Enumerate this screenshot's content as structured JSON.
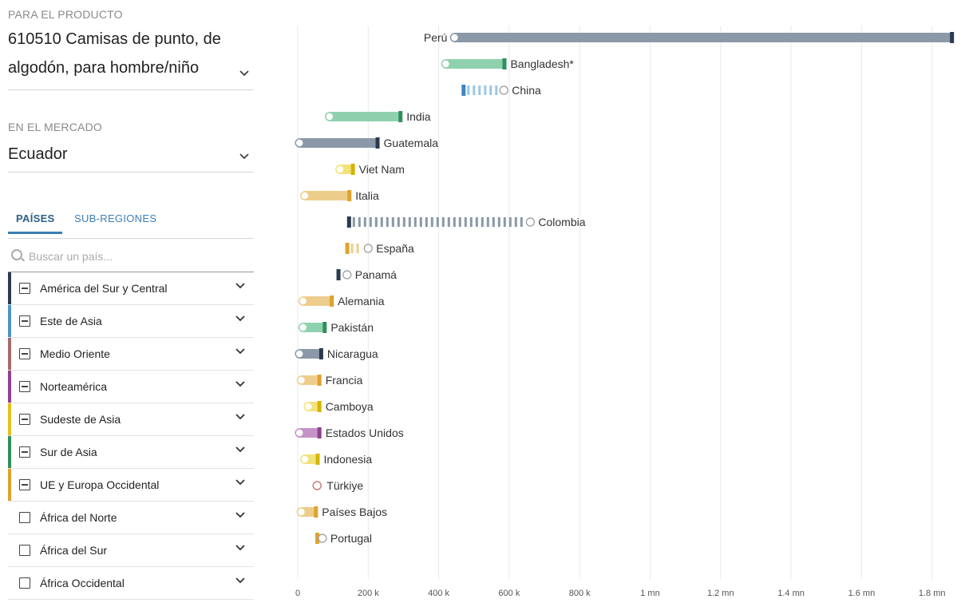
{
  "product": {
    "label": "PARA EL PRODUCTO",
    "line1": "610510 Camisas de punto, de",
    "line2": "algodón, para hombre/niño"
  },
  "market": {
    "label": "EN EL MERCADO",
    "value": "Ecuador"
  },
  "tabs": [
    {
      "label": "PAÍSES",
      "active": true
    },
    {
      "label": "SUB-REGIONES",
      "active": false
    }
  ],
  "search": {
    "placeholder": "Buscar un país..."
  },
  "regions": [
    {
      "label": "América del Sur y Central",
      "color": "#2b3a4f",
      "checked": true
    },
    {
      "label": "Este de Asia",
      "color": "#4f93c8",
      "checked": true
    },
    {
      "label": "Medio Oriente",
      "color": "#a56b6b",
      "checked": true
    },
    {
      "label": "Norteamérica",
      "color": "#8e3f91",
      "checked": true
    },
    {
      "label": "Sudeste de Asia",
      "color": "#e2c21b",
      "checked": true
    },
    {
      "label": "Sur de Asia",
      "color": "#2f8f5c",
      "checked": true
    },
    {
      "label": "UE y Europa Occidental",
      "color": "#e0a22e",
      "checked": true
    },
    {
      "label": "África del Norte",
      "color": "",
      "checked": false
    },
    {
      "label": "África del Sur",
      "color": "",
      "checked": false
    },
    {
      "label": "África Occidental",
      "color": "",
      "checked": false
    }
  ],
  "colors": {
    "south_central_america": "#8a98a8",
    "south_central_america_dark": "#2b3a4f",
    "east_asia": "#9cc7e6",
    "east_asia_dark": "#3f87c2",
    "south_asia": "#8fd1ae",
    "south_asia_dark": "#2f8f5c",
    "southeast_asia": "#f2e27a",
    "southeast_asia_dark": "#d6b400",
    "europe": "#edcd8c",
    "europe_dark": "#e0a22e",
    "north_america": "#c592c8",
    "north_america_dark": "#8e3f91",
    "middle_east": "#c97d7d"
  },
  "chart_data": {
    "type": "bar",
    "x_ticks": [
      "0",
      "200 k",
      "400 k",
      "600 k",
      "800 k",
      "1 mn",
      "1.2 mn",
      "1.4 mn",
      "1.6 mn",
      "1.8 mn"
    ],
    "x_tick_values": [
      0,
      200000,
      400000,
      600000,
      800000,
      1000000,
      1200000,
      1400000,
      1600000,
      1800000
    ],
    "xlim": [
      0,
      1880000
    ],
    "grid": true,
    "series": [
      {
        "country": "Perú",
        "from": 445000,
        "to": 1860000,
        "region": "south_central_america",
        "direction": "up"
      },
      {
        "country": "Bangladesh*",
        "from": 420000,
        "to": 590000,
        "region": "south_asia",
        "direction": "up"
      },
      {
        "country": "China",
        "from": 585000,
        "to": 465000,
        "region": "east_asia",
        "direction": "down"
      },
      {
        "country": "India",
        "from": 90000,
        "to": 295000,
        "region": "south_asia",
        "direction": "up"
      },
      {
        "country": "Guatemala",
        "from": 5000,
        "to": 230000,
        "region": "south_central_america",
        "direction": "up"
      },
      {
        "country": "Viet Nam",
        "from": 120000,
        "to": 160000,
        "region": "southeast_asia",
        "direction": "up"
      },
      {
        "country": "Italia",
        "from": 20000,
        "to": 150000,
        "region": "europe",
        "direction": "up"
      },
      {
        "country": "Colombia",
        "from": 660000,
        "to": 140000,
        "region": "south_central_america",
        "direction": "down"
      },
      {
        "country": "España",
        "from": 200000,
        "to": 135000,
        "region": "europe",
        "direction": "down"
      },
      {
        "country": "Panamá",
        "from": 140000,
        "to": 110000,
        "region": "south_central_america",
        "direction": "down"
      },
      {
        "country": "Alemania",
        "from": 15000,
        "to": 100000,
        "region": "europe",
        "direction": "up"
      },
      {
        "country": "Pakistán",
        "from": 15000,
        "to": 80000,
        "region": "south_asia",
        "direction": "up"
      },
      {
        "country": "Nicaragua",
        "from": 5000,
        "to": 70000,
        "region": "south_central_america",
        "direction": "up"
      },
      {
        "country": "Francia",
        "from": 10000,
        "to": 65000,
        "region": "europe",
        "direction": "up"
      },
      {
        "country": "Camboya",
        "from": 30000,
        "to": 65000,
        "region": "southeast_asia",
        "direction": "up"
      },
      {
        "country": "Estados Unidos",
        "from": 5000,
        "to": 65000,
        "region": "north_america",
        "direction": "up"
      },
      {
        "country": "Indonesia",
        "from": 20000,
        "to": 60000,
        "region": "southeast_asia",
        "direction": "up"
      },
      {
        "country": "Türkiye",
        "from": 55000,
        "to": 55000,
        "region": "middle_east",
        "direction": "flat"
      },
      {
        "country": "Países Bajos",
        "from": 10000,
        "to": 55000,
        "region": "europe",
        "direction": "up"
      },
      {
        "country": "Portugal",
        "from": 70000,
        "to": 50000,
        "region": "europe",
        "direction": "down"
      }
    ]
  }
}
